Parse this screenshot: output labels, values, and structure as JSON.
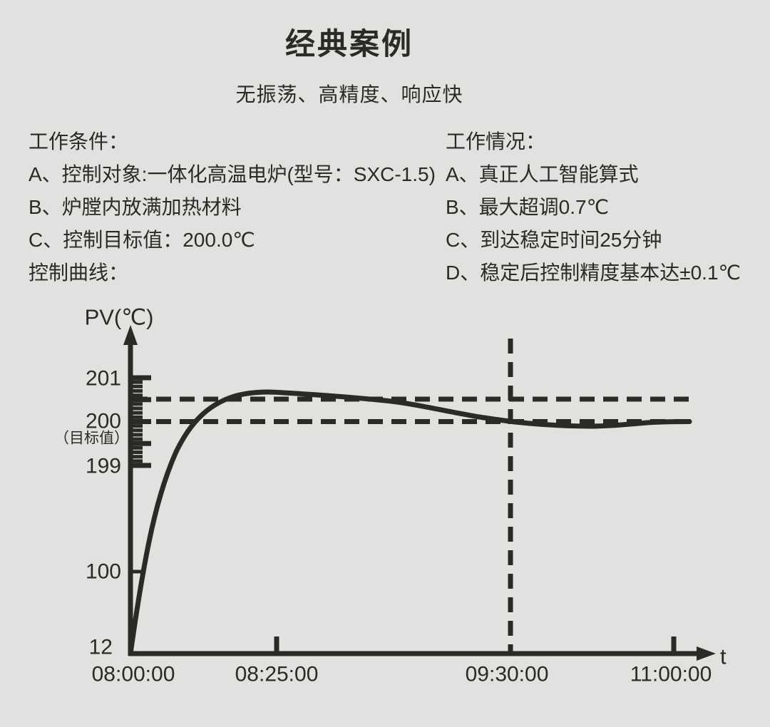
{
  "page": {
    "title": "经典案例",
    "subtitle": "无振荡、高精度、响应快"
  },
  "conditions": {
    "header": "工作条件：",
    "items": [
      "A、控制对象:一体化高温电炉(型号：SXC-1.5)",
      "B、炉膛内放满加热材料",
      "C、控制目标值：200.0℃"
    ],
    "curve_label": "控制曲线："
  },
  "results": {
    "header": "工作情况：",
    "items": [
      "A、真正人工智能算式",
      "B、最大超调0.7℃",
      "C、到达稳定时间25分钟",
      "D、稳定后控制精度基本达±0.1℃"
    ]
  },
  "chart_data": {
    "type": "line",
    "title": "控制曲线",
    "ylabel": "PV(℃)",
    "xlabel": "t",
    "y_tick_labels": [
      "201",
      "200",
      "199",
      "100",
      "12"
    ],
    "target_value_note": "（目标值）",
    "target_value": 200.0,
    "x_tick_labels": [
      "08:00:00",
      "08:25:00",
      "09:30:00",
      "11:00:00"
    ],
    "axis_notes": "schematic non-linear axes; fine ruler on y-axis from 199 to 201 in 0.1℃ steps",
    "series": [
      {
        "name": "PV",
        "points": [
          {
            "t": "08:00:00",
            "pv": 12
          },
          {
            "t": "08:08:00",
            "pv": 100
          },
          {
            "t": "08:15:00",
            "pv": 199
          },
          {
            "t": "08:18:00",
            "pv": 200
          },
          {
            "t": "08:25:00",
            "pv": 200.7
          },
          {
            "t": "08:50:00",
            "pv": 200.4
          },
          {
            "t": "09:30:00",
            "pv": 200.0
          },
          {
            "t": "10:10:00",
            "pv": 199.9
          },
          {
            "t": "11:00:00",
            "pv": 200.0
          }
        ]
      }
    ],
    "annotations": {
      "upper_dashed_line_value": 200.5,
      "target_dashed_line_value": 200.0,
      "vertical_dashed_at": "09:30:00",
      "max_overshoot": "0.7℃",
      "time_to_stable": "25分钟",
      "stable_precision": "±0.1℃"
    }
  }
}
